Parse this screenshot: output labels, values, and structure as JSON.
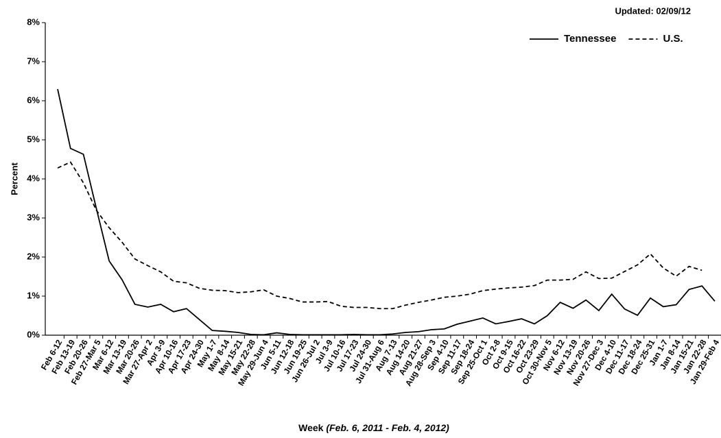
{
  "chart_data": {
    "type": "line",
    "note": "Updated: 02/09/12",
    "y_label": "Percent",
    "x_label": "Week",
    "x_label_note": "(Feb. 6, 2011 - Feb. 4, 2012)",
    "categories": [
      "Feb 6-12",
      "Feb 13-19",
      "Feb 20-26",
      "Feb 27-Mar 5",
      "Mar 6-12",
      "Mar 13-19",
      "Mar 20-26",
      "Mar 27-Apr 2",
      "Apr 3-9",
      "Apr 10-16",
      "Apr 17-23",
      "Apr 24-30",
      "May 1-7",
      "May 8-14",
      "May 15-21",
      "May 22-28",
      "May 29-Jun 4",
      "Jun 5-11",
      "Jun 12-18",
      "Jun 19-25",
      "Jun 26-Jul 2",
      "Jul 3-9",
      "Jul 10-16",
      "Jul 17-23",
      "Jul 24-30",
      "Jul 31-Aug 6",
      "Aug 7-13",
      "Aug 14-20",
      "Aug 21-27",
      "Aug 28-Sep 3",
      "Sep 4-10",
      "Sep 11-17",
      "Sep 18-24",
      "Sep 25-Oct 1",
      "Oct 2-8",
      "Oct 9-15",
      "Oct 16-22",
      "Oct 23-29",
      "Oct 30-Nov 5",
      "Nov 6-12",
      "Nov 13-19",
      "Nov 20-26",
      "Nov 27-Dec 3",
      "Dec 4-10",
      "Dec 11-17",
      "Dec 18-24",
      "Dec 25-31",
      "Jan 1-7",
      "Jan 8-14",
      "Jan 15-21",
      "Jan 22-28",
      "Jan 29-Feb 4"
    ],
    "series": [
      {
        "name": "Tennessee",
        "color": "#000000",
        "dash": "solid",
        "values": [
          6.3,
          4.78,
          4.63,
          3.25,
          1.9,
          1.42,
          0.79,
          0.72,
          0.79,
          0.6,
          0.68,
          0.4,
          0.12,
          0.1,
          0.07,
          0.02,
          0.01,
          0.06,
          0.02,
          0.01,
          0.01,
          0.01,
          0.01,
          0.02,
          0.01,
          0.01,
          0.03,
          0.07,
          0.09,
          0.14,
          0.16,
          0.28,
          0.36,
          0.44,
          0.29,
          0.35,
          0.42,
          0.29,
          0.5,
          0.84,
          0.69,
          0.9,
          0.63,
          1.05,
          0.67,
          0.51,
          0.95,
          0.73,
          0.78,
          1.17,
          1.26,
          0.87
        ]
      },
      {
        "name": "U.S.",
        "color": "#000000",
        "dash": "dashed",
        "values": [
          4.28,
          4.43,
          3.9,
          3.2,
          2.75,
          2.38,
          1.95,
          1.78,
          1.62,
          1.38,
          1.34,
          1.2,
          1.15,
          1.14,
          1.09,
          1.11,
          1.16,
          1.0,
          0.94,
          0.85,
          0.85,
          0.86,
          0.74,
          0.71,
          0.71,
          0.68,
          0.68,
          0.77,
          0.84,
          0.9,
          0.97,
          1.0,
          1.05,
          1.14,
          1.18,
          1.21,
          1.23,
          1.27,
          1.41,
          1.41,
          1.43,
          1.62,
          1.45,
          1.46,
          1.63,
          1.8,
          2.08,
          1.72,
          1.51,
          1.76,
          1.66,
          null
        ]
      }
    ],
    "ylim": [
      0,
      8
    ],
    "yticks": [
      {
        "value": 0,
        "label": "0%"
      },
      {
        "value": 1,
        "label": "1%"
      },
      {
        "value": 2,
        "label": "2%"
      },
      {
        "value": 3,
        "label": "3%"
      },
      {
        "value": 4,
        "label": "4%"
      },
      {
        "value": 5,
        "label": "5%"
      },
      {
        "value": 6,
        "label": "6%"
      },
      {
        "value": 7,
        "label": "7%"
      },
      {
        "value": 8,
        "label": "8%"
      }
    ],
    "grid": false,
    "legend": "top-right"
  }
}
